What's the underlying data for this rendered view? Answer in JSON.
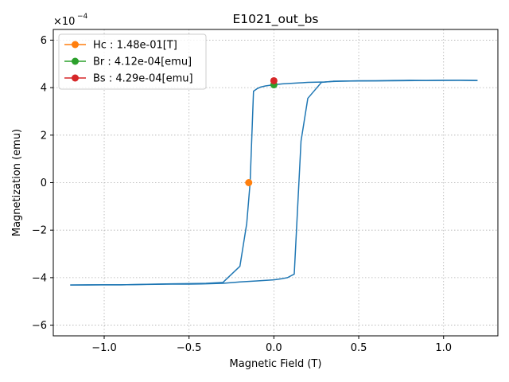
{
  "chart_data": {
    "type": "line",
    "title": "E1021_out_bs",
    "xlabel": "Magnetic Field (T)",
    "ylabel": "Magnetization (emu)",
    "y_offset_label": "×10",
    "y_offset_exponent": "−4",
    "xlim": [
      -1.3,
      1.32
    ],
    "ylim": [
      -6.45,
      6.45
    ],
    "x_ticks": [
      {
        "value": -1.0,
        "label": "−1.0"
      },
      {
        "value": -0.5,
        "label": "−0.5"
      },
      {
        "value": 0.0,
        "label": "0.0"
      },
      {
        "value": 0.5,
        "label": "0.5"
      },
      {
        "value": 1.0,
        "label": "1.0"
      }
    ],
    "y_ticks": [
      {
        "value": -6,
        "label": "−6"
      },
      {
        "value": -4,
        "label": "−4"
      },
      {
        "value": -2,
        "label": "−2"
      },
      {
        "value": 0,
        "label": "0"
      },
      {
        "value": 2,
        "label": "2"
      },
      {
        "value": 4,
        "label": "4"
      },
      {
        "value": 6,
        "label": "6"
      }
    ],
    "grid": true,
    "legend_position": "top-left",
    "y_units": "×10^-4 emu",
    "series": [
      {
        "color": "#1f77b4",
        "x": [
          1.2,
          1.1,
          1.0,
          0.9,
          0.8,
          0.7,
          0.6,
          0.5,
          0.4,
          0.35,
          0.3,
          0.25,
          0.2,
          0.15,
          0.1,
          0.05,
          0.0,
          -0.05,
          -0.08,
          -0.1,
          -0.12,
          -0.14,
          -0.16,
          -0.2,
          -0.3,
          -0.4,
          -0.5,
          -0.6,
          -0.7,
          -0.8,
          -0.9,
          -1.0,
          -1.1,
          -1.2
        ],
        "y": [
          4.3,
          4.31,
          4.31,
          4.3,
          4.31,
          4.3,
          4.29,
          4.29,
          4.27,
          4.26,
          4.24,
          4.23,
          4.22,
          4.2,
          4.18,
          4.16,
          4.12,
          4.07,
          4.02,
          3.95,
          3.85,
          0.0,
          -1.72,
          -3.52,
          -4.2,
          -4.24,
          -4.25,
          -4.26,
          -4.27,
          -4.29,
          -4.3,
          -4.3,
          -4.31,
          -4.31
        ]
      },
      {
        "color": "#1f77b4",
        "x": [
          -1.2,
          -1.1,
          -1.0,
          -0.9,
          -0.8,
          -0.7,
          -0.6,
          -0.5,
          -0.4,
          -0.3,
          -0.2,
          -0.1,
          0.0,
          0.05,
          0.08,
          0.12,
          0.16,
          0.2,
          0.28,
          0.35,
          0.5,
          0.7,
          0.9,
          1.1,
          1.2
        ],
        "y": [
          -4.31,
          -4.3,
          -4.3,
          -4.3,
          -4.29,
          -4.28,
          -4.27,
          -4.27,
          -4.26,
          -4.24,
          -4.18,
          -4.14,
          -4.09,
          -4.04,
          -4.0,
          -3.85,
          1.75,
          3.55,
          4.22,
          4.27,
          4.28,
          4.29,
          4.3,
          4.31,
          4.3
        ]
      }
    ],
    "markers": [
      {
        "name": "Hc : 1.48e-01[T]",
        "color": "#ff7f0e",
        "x": -0.148,
        "y": 0.0
      },
      {
        "name": "Br : 4.12e-04[emu]",
        "color": "#2ca02c",
        "x": 0.0,
        "y": 4.12
      },
      {
        "name": "Bs : 4.29e-04[emu]",
        "color": "#d62728",
        "x": 0.0,
        "y": 4.29
      }
    ]
  }
}
